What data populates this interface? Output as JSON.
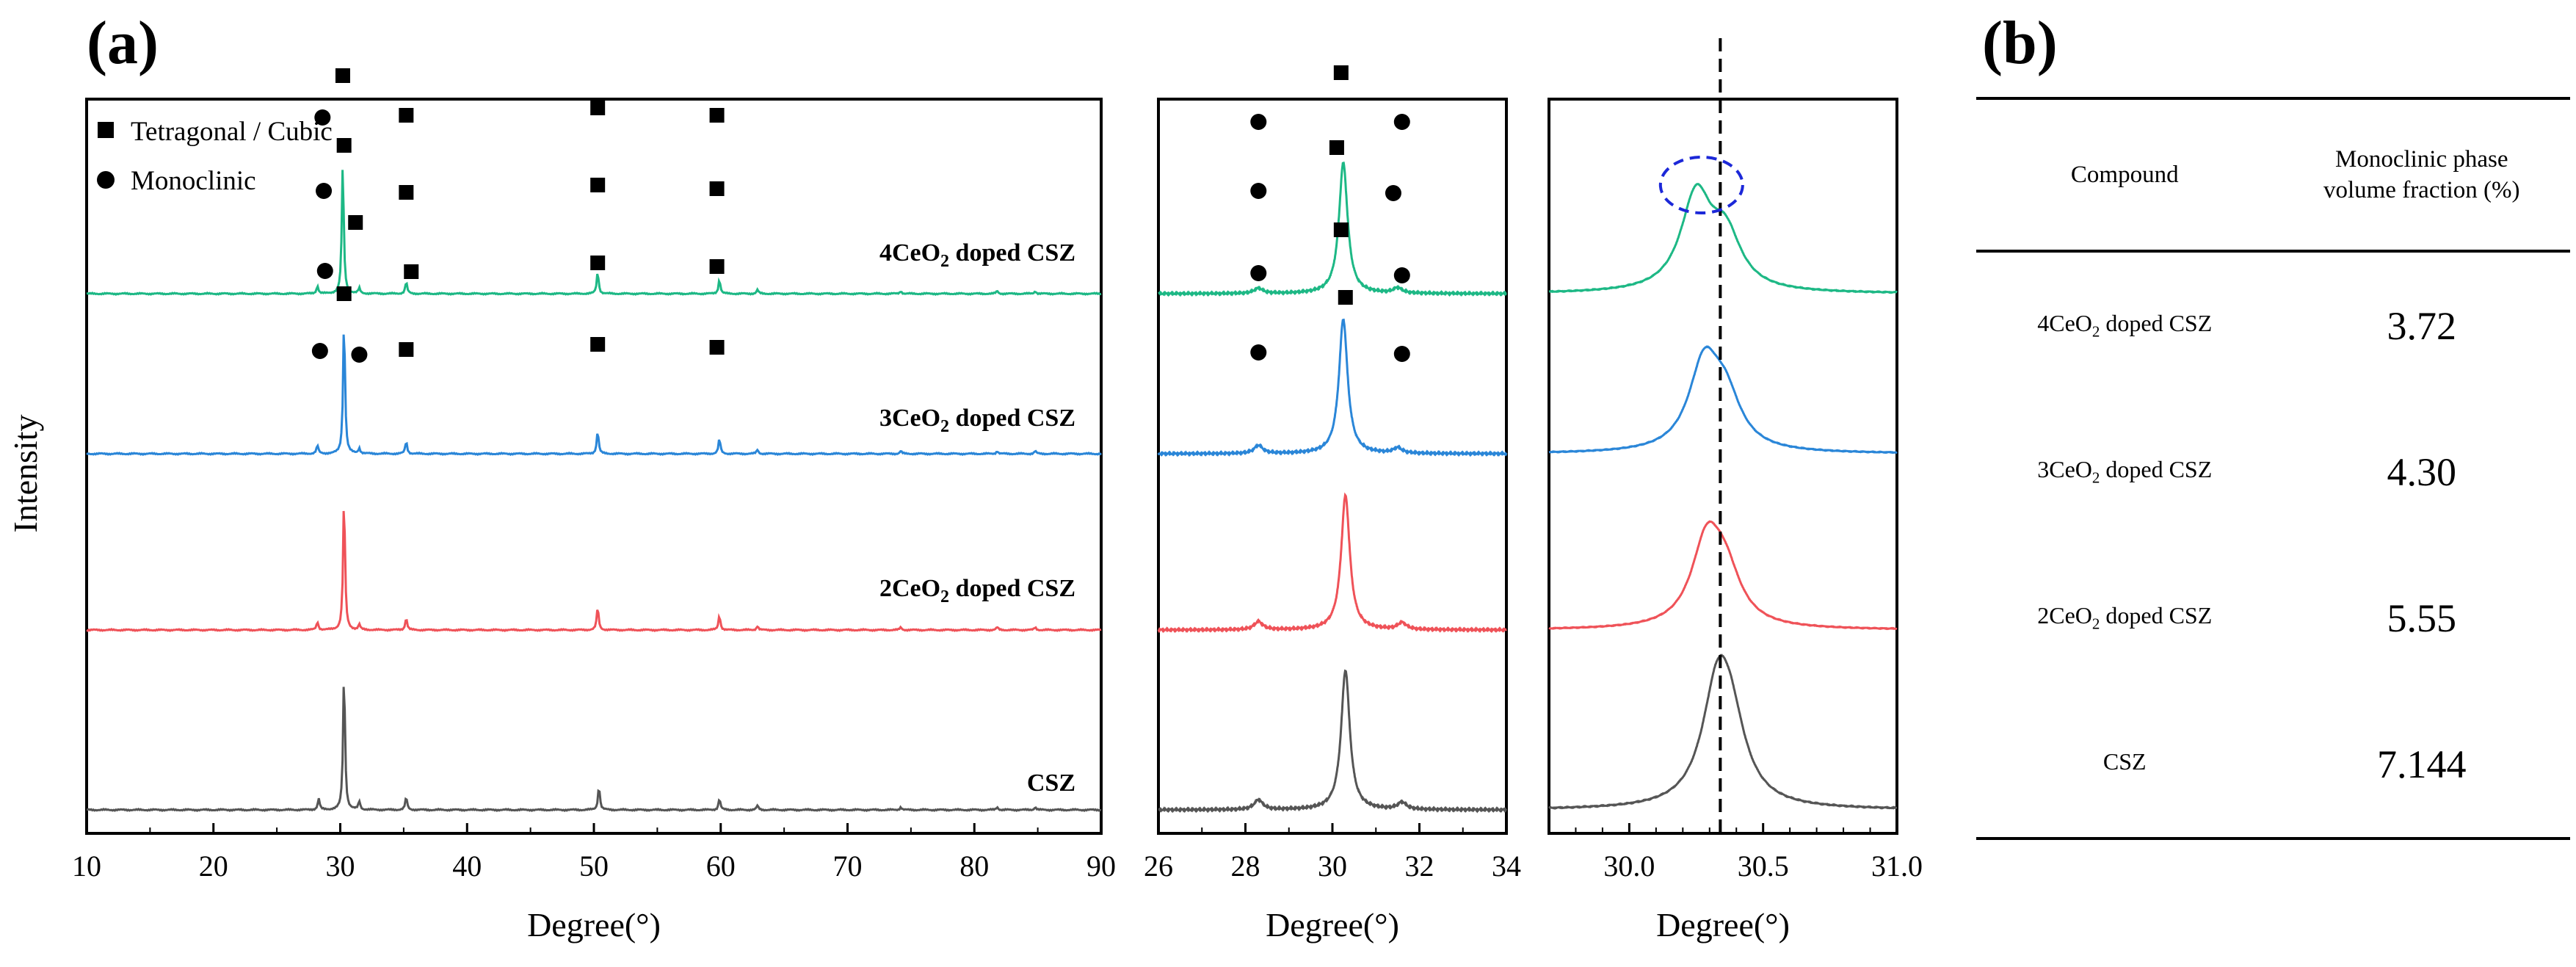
{
  "figure": {
    "panel_a_label": "(a)",
    "panel_b_label": "(b)",
    "y_axis_title": "Intensity",
    "x_axis_title": "Degree(°)",
    "legend": {
      "tetragonal_cubic": "Tetragonal / Cubic",
      "monoclinic": "Monoclinic"
    },
    "series_labels": [
      {
        "prefix": "4CeO",
        "sub": "2",
        "suffix": " doped CSZ"
      },
      {
        "prefix": "3CeO",
        "sub": "2",
        "suffix": " doped CSZ"
      },
      {
        "prefix": "2CeO",
        "sub": "2",
        "suffix": " doped CSZ"
      },
      {
        "prefix": "CSZ",
        "sub": "",
        "suffix": ""
      }
    ],
    "colors": {
      "4CeO2": "#1db885",
      "3CeO2": "#2a86d8",
      "2CeO2": "#ef5258",
      "CSZ": "#555555",
      "highlight_circle": "#1c28d8",
      "reference_line": "#000000"
    }
  },
  "chart_data": [
    {
      "type": "line",
      "panel": "a-full",
      "xlabel": "Degree(°)",
      "ylabel": "Intensity",
      "xlim": [
        10,
        90
      ],
      "xticks": [
        "10",
        "20",
        "30",
        "40",
        "50",
        "60",
        "70",
        "80",
        "90"
      ],
      "series": [
        {
          "name": "4CeO2 doped CSZ",
          "peaks": [
            [
              28.2,
              0.06
            ],
            [
              30.2,
              1.0
            ],
            [
              31.5,
              0.04
            ],
            [
              35.2,
              0.09
            ],
            [
              50.3,
              0.17
            ],
            [
              59.9,
              0.11
            ],
            [
              62.9,
              0.03
            ],
            [
              74.2,
              0.02
            ],
            [
              81.8,
              0.02
            ],
            [
              84.8,
              0.02
            ]
          ]
        },
        {
          "name": "3CeO2 doped CSZ",
          "peaks": [
            [
              28.2,
              0.06
            ],
            [
              30.3,
              1.0
            ],
            [
              31.5,
              0.04
            ],
            [
              35.2,
              0.09
            ],
            [
              50.3,
              0.17
            ],
            [
              59.9,
              0.11
            ],
            [
              62.9,
              0.03
            ],
            [
              74.2,
              0.02
            ],
            [
              81.8,
              0.02
            ],
            [
              84.8,
              0.02
            ]
          ]
        },
        {
          "name": "2CeO2 doped CSZ",
          "peaks": [
            [
              28.2,
              0.06
            ],
            [
              30.3,
              1.0
            ],
            [
              31.5,
              0.04
            ],
            [
              35.2,
              0.09
            ],
            [
              50.3,
              0.17
            ],
            [
              59.9,
              0.11
            ],
            [
              62.9,
              0.03
            ],
            [
              74.2,
              0.02
            ],
            [
              81.8,
              0.02
            ],
            [
              84.8,
              0.02
            ]
          ]
        },
        {
          "name": "CSZ",
          "peaks": [
            [
              28.3,
              0.08
            ],
            [
              30.3,
              1.0
            ],
            [
              31.5,
              0.06
            ],
            [
              35.2,
              0.09
            ],
            [
              50.4,
              0.17
            ],
            [
              59.9,
              0.08
            ],
            [
              62.9,
              0.03
            ],
            [
              74.2,
              0.02
            ],
            [
              81.8,
              0.02
            ],
            [
              84.8,
              0.02
            ]
          ]
        }
      ],
      "markers": {
        "tetragonal_cubic": [
          [
            [
              30.2,
              "4CeO2 doped CSZ"
            ],
            [
              35.2,
              "4CeO2 doped CSZ"
            ],
            [
              50.3,
              "4CeO2 doped CSZ"
            ],
            [
              59.7,
              "4CeO2 doped CSZ"
            ]
          ],
          [
            [
              30.3,
              "3CeO2 doped CSZ"
            ],
            [
              35.2,
              "3CeO2 doped CSZ"
            ],
            [
              50.3,
              "3CeO2 doped CSZ"
            ],
            [
              59.7,
              "3CeO2 doped CSZ"
            ]
          ],
          [
            [
              31.2,
              "2CeO2 doped CSZ"
            ],
            [
              35.6,
              "2CeO2 doped CSZ"
            ],
            [
              50.3,
              "2CeO2 doped CSZ"
            ],
            [
              59.7,
              "2CeO2 doped CSZ"
            ]
          ],
          [
            [
              30.3,
              "CSZ"
            ],
            [
              35.2,
              "CSZ"
            ],
            [
              50.3,
              "CSZ"
            ],
            [
              59.7,
              "CSZ"
            ]
          ]
        ],
        "monoclinic": [
          [
            28.6
          ],
          [
            28.7
          ],
          [
            28.8
          ],
          [
            28.4,
            31.5
          ]
        ]
      }
    },
    {
      "type": "line",
      "panel": "a-zoom",
      "xlabel": "Degree(°)",
      "xlim": [
        26,
        34
      ],
      "xticks": [
        "26",
        "28",
        "30",
        "32",
        "34"
      ],
      "series": [
        {
          "name": "4CeO2 doped CSZ",
          "peaks": [
            [
              28.3,
              0.04
            ],
            [
              30.25,
              1.0
            ],
            [
              31.5,
              0.04
            ]
          ]
        },
        {
          "name": "3CeO2 doped CSZ",
          "peaks": [
            [
              28.3,
              0.06
            ],
            [
              30.25,
              1.0
            ],
            [
              31.5,
              0.04
            ]
          ]
        },
        {
          "name": "2CeO2 doped CSZ",
          "peaks": [
            [
              28.3,
              0.06
            ],
            [
              30.3,
              1.0
            ],
            [
              31.6,
              0.05
            ]
          ]
        },
        {
          "name": "CSZ",
          "peaks": [
            [
              28.3,
              0.07
            ],
            [
              30.3,
              1.0
            ],
            [
              31.6,
              0.05
            ]
          ]
        }
      ],
      "markers": {
        "tetragonal_cubic": [
          [
            30.2
          ],
          [
            30.1
          ],
          [
            30.2
          ],
          [
            30.3
          ]
        ],
        "monoclinic": [
          [
            28.3,
            31.6
          ],
          [
            28.3,
            31.4
          ],
          [
            28.3,
            31.6
          ],
          [
            28.3,
            31.6
          ]
        ]
      }
    },
    {
      "type": "line",
      "panel": "a-detail",
      "xlabel": "Degree(°)",
      "xlim": [
        29.7,
        31.0
      ],
      "xticks": [
        "30.0",
        "30.5",
        "31.0"
      ],
      "reference_line_x": 30.34,
      "series": [
        {
          "name": "4CeO2 doped CSZ",
          "peak_center": 30.25,
          "shoulder": 30.36
        },
        {
          "name": "3CeO2 doped CSZ",
          "peak_center": 30.28,
          "shoulder": 30.36
        },
        {
          "name": "2CeO2 doped CSZ",
          "peak_center": 30.29,
          "shoulder": 30.36
        },
        {
          "name": "CSZ",
          "peak_center": 30.33,
          "shoulder": 30.38
        }
      ],
      "highlight": {
        "x": 30.27,
        "series": "4CeO2 doped CSZ"
      }
    },
    {
      "type": "table",
      "panel": "b",
      "columns": [
        "Compound",
        "Monoclinic phase volume fraction (%)"
      ],
      "column_header_lines": [
        [
          "Compound"
        ],
        [
          "Monoclinic phase",
          "volume fraction (%)"
        ]
      ],
      "rows": [
        {
          "compound": "4CeO2 doped CSZ",
          "prefix": "4CeO",
          "sub": "2",
          "suffix": " doped CSZ",
          "value": "3.72"
        },
        {
          "compound": "3CeO2 doped CSZ",
          "prefix": "3CeO",
          "sub": "2",
          "suffix": " doped CSZ",
          "value": "4.30"
        },
        {
          "compound": "2CeO2 doped CSZ",
          "prefix": "2CeO",
          "sub": "2",
          "suffix": " doped CSZ",
          "value": "5.55"
        },
        {
          "compound": "CSZ",
          "prefix": "CSZ",
          "sub": "",
          "suffix": "",
          "value": "7.144"
        }
      ]
    }
  ]
}
